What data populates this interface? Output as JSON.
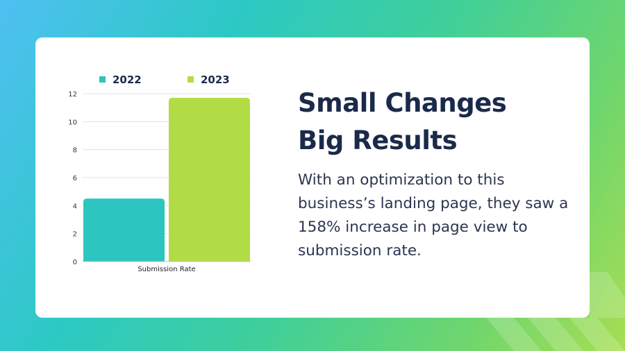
{
  "colors": {
    "series_2022": "#2cc5bf",
    "series_2023": "#b2dc45",
    "heading": "#1b2a4a",
    "text": "#2c3550"
  },
  "headline": {
    "line1": "Small Changes",
    "line2": "Big Results"
  },
  "body": "With an optimization to this business’s landing page, they saw a 158% increase in page view to submission rate.",
  "chart_data": {
    "type": "bar",
    "categories": [
      "Submission Rate"
    ],
    "series": [
      {
        "name": "2022",
        "values": [
          4.5
        ]
      },
      {
        "name": "2023",
        "values": [
          11.7
        ]
      }
    ],
    "yticks": [
      0,
      2,
      4,
      6,
      8,
      10,
      12
    ],
    "ylim": [
      0,
      12
    ],
    "grid": true,
    "legend": "top-left",
    "xlabel": "",
    "ylabel": ""
  }
}
